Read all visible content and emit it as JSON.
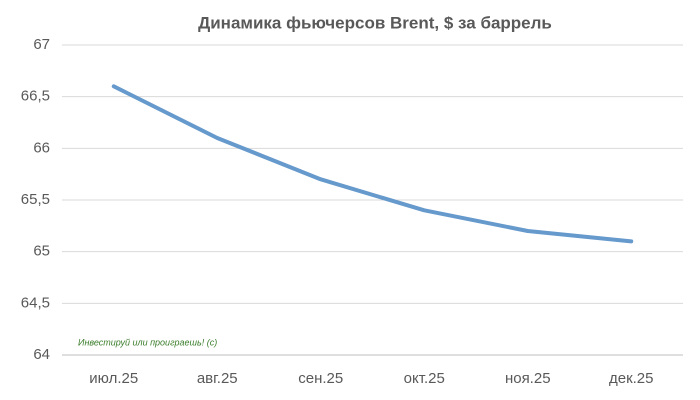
{
  "chart_data": {
    "type": "line",
    "title": "Динамика фьючерсов Brent, $ за баррель",
    "categories": [
      "июл.25",
      "авг.25",
      "сен.25",
      "окт.25",
      "ноя.25",
      "дек.25"
    ],
    "values": [
      66.6,
      66.1,
      65.7,
      65.4,
      65.2,
      65.1
    ],
    "color": "#6699cc",
    "ylim": [
      64,
      67
    ],
    "yticks": [
      64,
      {
        "value": 64.5,
        "label": "64,5"
      },
      65,
      {
        "value": 65.5,
        "label": "65,5"
      },
      66,
      {
        "value": 66.5,
        "label": "66,5"
      },
      67
    ],
    "grid": true,
    "annotation": "Инвестируй или проиграешь! (с)"
  }
}
